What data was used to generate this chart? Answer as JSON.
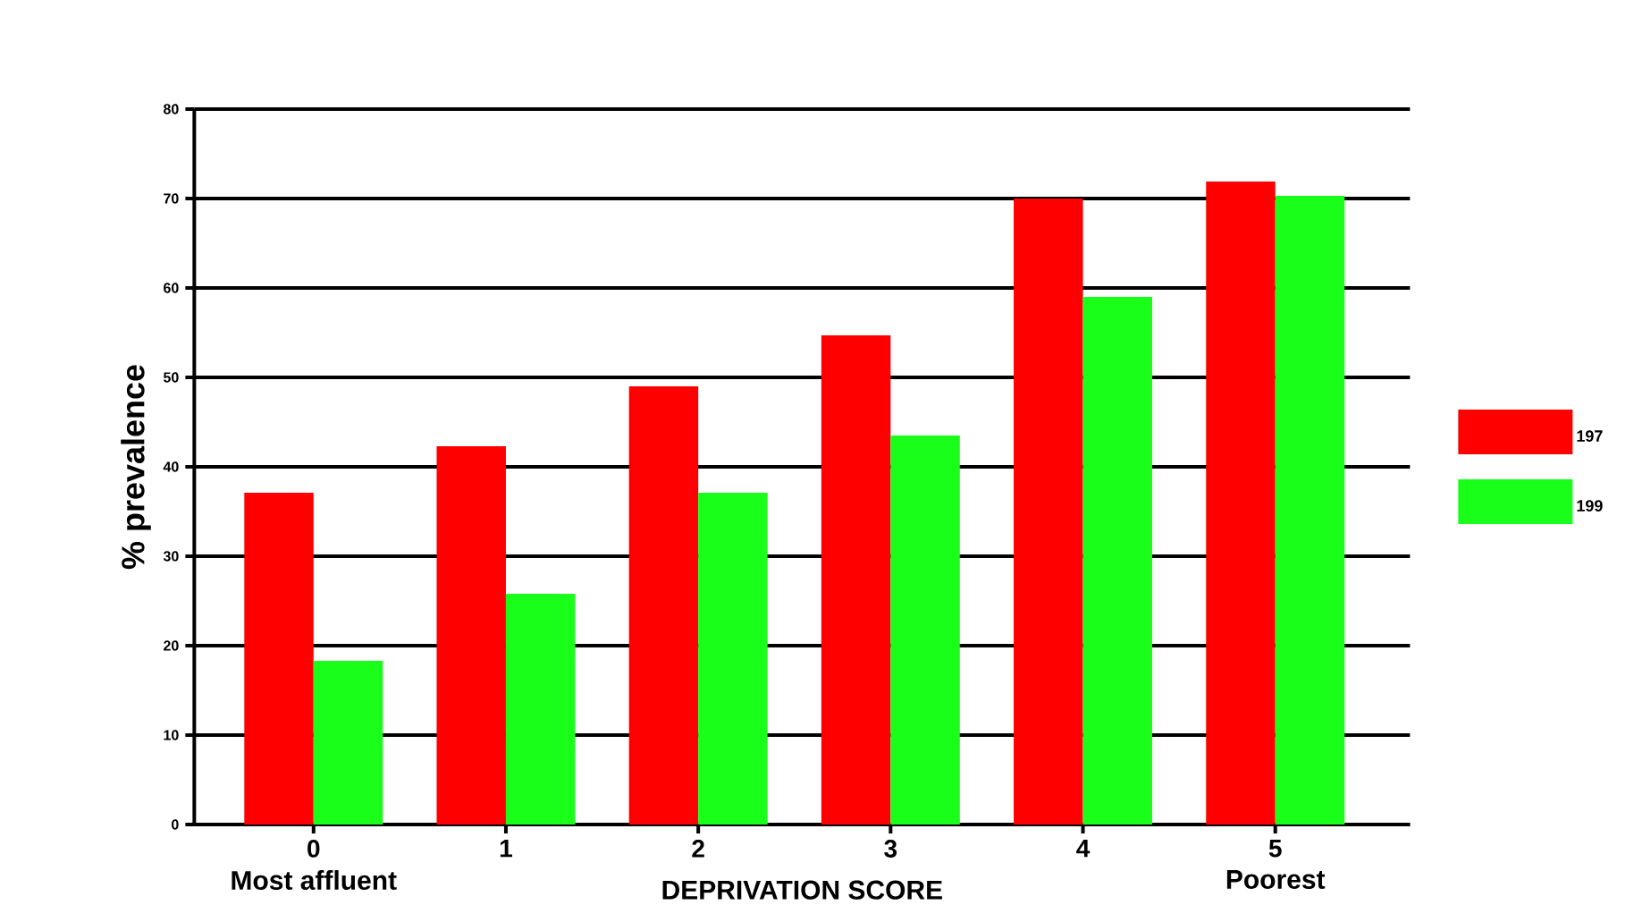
{
  "chart_data": {
    "type": "bar",
    "xlabel": "DEPRIVATION SCORE",
    "ylabel": "% prevalence",
    "categories": [
      "0",
      "1",
      "2",
      "3",
      "4",
      "5"
    ],
    "series": [
      {
        "name": "197",
        "color": "#ff0000",
        "values": [
          37.1,
          42.3,
          49,
          54.7,
          70,
          71.9
        ]
      },
      {
        "name": "199",
        "color": "#19ff19",
        "values": [
          18.3,
          25.8,
          37.1,
          43.5,
          59,
          70.3
        ]
      }
    ],
    "annotations": [
      "Most affluent",
      "Poorest"
    ],
    "ylim": [
      0,
      80
    ],
    "yticks": [
      0,
      10,
      20,
      30,
      40,
      50,
      60,
      70,
      80
    ],
    "grid": "y",
    "legend": "right"
  }
}
